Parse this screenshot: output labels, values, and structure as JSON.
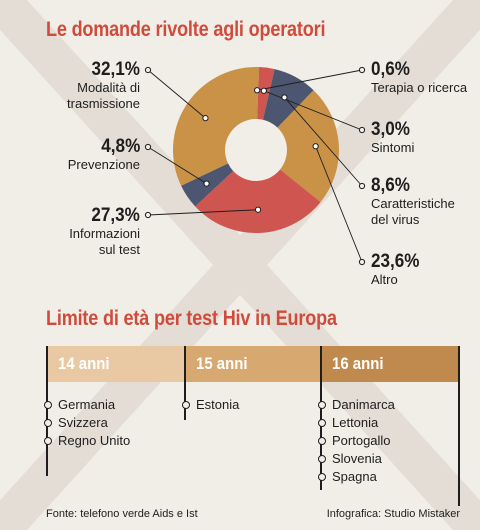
{
  "pie_title": "Le domande rivolte agli operatori",
  "age_title": "Limite di età per test Hiv in Europa",
  "colors": {
    "title": "#cf4b3c",
    "background": "#f1ede7",
    "cross": "#e3ddd5",
    "orange": "#c99247",
    "navy": "#4d5670",
    "red": "#cf5650",
    "age14": "#e9c9a3",
    "age15": "#d7a870",
    "age16": "#c08a4e"
  },
  "chart_data": {
    "type": "pie",
    "title": "Le domande rivolte agli operatori",
    "donut": true,
    "slices": [
      {
        "label": "Terapia o ricerca",
        "pct_label": "0,6%",
        "value": 0.6,
        "color": "#c99247"
      },
      {
        "label": "Sintomi",
        "pct_label": "3,0%",
        "value": 3.0,
        "color": "#cf5650"
      },
      {
        "label": "Caratteristiche del virus",
        "pct_label": "8,6%",
        "value": 8.6,
        "color": "#4d5670"
      },
      {
        "label": "Altro",
        "pct_label": "23,6%",
        "value": 23.6,
        "color": "#c99247"
      },
      {
        "label": "Informazioni sul test",
        "pct_label": "27,3%",
        "value": 27.3,
        "color": "#cf5650"
      },
      {
        "label": "Prevenzione",
        "pct_label": "4,8%",
        "value": 4.8,
        "color": "#4d5670"
      },
      {
        "label": "Modalità di trasmissione",
        "pct_label": "32,1%",
        "value": 32.1,
        "color": "#c99247"
      }
    ]
  },
  "labels": {
    "trasmissione": {
      "pct": "32,1%",
      "l1": "Modalità di",
      "l2": "trasmissione"
    },
    "prevenzione": {
      "pct": "4,8%",
      "l1": "Prevenzione"
    },
    "test": {
      "pct": "27,3%",
      "l1": "Informazioni",
      "l2": "sul test"
    },
    "terapia": {
      "pct": "0,6%",
      "l1": "Terapia o ricerca"
    },
    "sintomi": {
      "pct": "3,0%",
      "l1": "Sintomi"
    },
    "virus": {
      "pct": "8,6%",
      "l1": "Caratteristiche",
      "l2": "del virus"
    },
    "altro": {
      "pct": "23,6%",
      "l1": "Altro"
    }
  },
  "age_groups": [
    {
      "label": "14 anni",
      "countries": [
        "Germania",
        "Svizzera",
        "Regno Unito"
      ]
    },
    {
      "label": "15 anni",
      "countries": [
        "Estonia"
      ]
    },
    {
      "label": "16 anni",
      "countries": [
        "Danimarca",
        "Lettonia",
        "Portogallo",
        "Slovenia",
        "Spagna"
      ]
    }
  ],
  "footer": {
    "source": "Fonte: telefono verde Aids e Ist",
    "credit": "Infografica: Studio Mistaker"
  }
}
